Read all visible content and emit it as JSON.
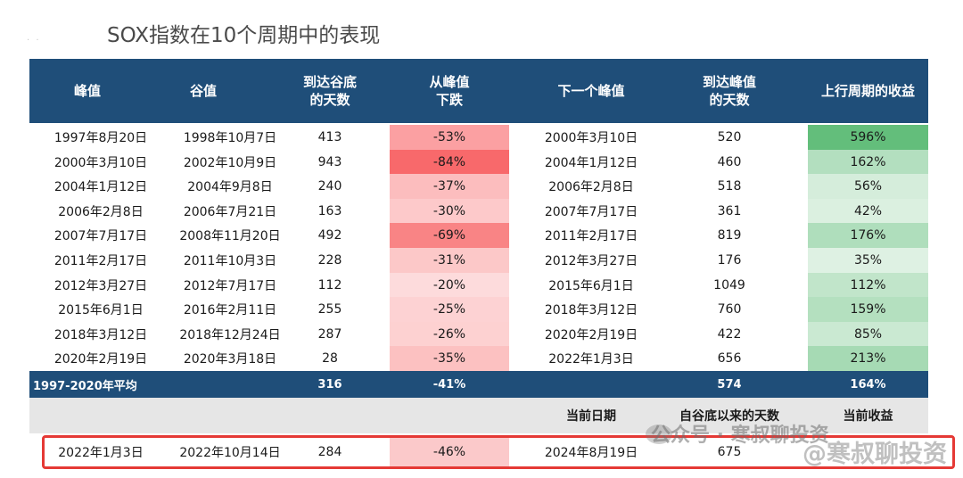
{
  "title": "SOX指数在10个周期中的表现",
  "header": [
    "峰值",
    "谷值",
    "到达谷底\n的天数",
    "从峰值\n下跌",
    "下一个峰值",
    "到达峰值\n的天数",
    "上行周期的收益"
  ],
  "rows": [
    {
      "peak": "1997年8月20日",
      "trough": "1998年10月7日",
      "days_to_trough": "413",
      "drop": "-53%",
      "next_peak": "2000年3月10日",
      "days_to_peak": "520",
      "gain": "596%"
    },
    {
      "peak": "2000年3月10日",
      "trough": "2002年10月9日",
      "days_to_trough": "943",
      "drop": "-84%",
      "next_peak": "2004年1月12日",
      "days_to_peak": "460",
      "gain": "162%"
    },
    {
      "peak": "2004年1月12日",
      "trough": "2004年9月8日",
      "days_to_trough": "240",
      "drop": "-37%",
      "next_peak": "2006年2月8日",
      "days_to_peak": "518",
      "gain": "56%"
    },
    {
      "peak": "2006年2月8日",
      "trough": "2006年7月21日",
      "days_to_trough": "163",
      "drop": "-30%",
      "next_peak": "2007年7月17日",
      "days_to_peak": "361",
      "gain": "42%"
    },
    {
      "peak": "2007年7月17日",
      "trough": "2008年11月20日",
      "days_to_trough": "492",
      "drop": "-69%",
      "next_peak": "2011年2月17日",
      "days_to_peak": "819",
      "gain": "176%"
    },
    {
      "peak": "2011年2月17日",
      "trough": "2011年10月3日",
      "days_to_trough": "228",
      "drop": "-31%",
      "next_peak": "2012年3月27日",
      "days_to_peak": "176",
      "gain": "35%"
    },
    {
      "peak": "2012年3月27日",
      "trough": "2012年7月17日",
      "days_to_trough": "112",
      "drop": "-20%",
      "next_peak": "2015年6月1日",
      "days_to_peak": "1049",
      "gain": "112%"
    },
    {
      "peak": "2015年6月1日",
      "trough": "2016年2月11日",
      "days_to_trough": "255",
      "drop": "-25%",
      "next_peak": "2018年3月12日",
      "days_to_peak": "760",
      "gain": "159%"
    },
    {
      "peak": "2018年3月12日",
      "trough": "2018年12月24日",
      "days_to_trough": "287",
      "drop": "-26%",
      "next_peak": "2020年2月19日",
      "days_to_peak": "422",
      "gain": "85%"
    },
    {
      "peak": "2020年2月19日",
      "trough": "2020年3月18日",
      "days_to_trough": "28",
      "drop": "-35%",
      "next_peak": "2022年1月3日",
      "days_to_peak": "656",
      "gain": "213%"
    }
  ],
  "average": {
    "label": "1997-2020年平均",
    "days_to_trough": "316",
    "drop": "-41%",
    "days_to_peak": "574",
    "gain": "164%"
  },
  "current_header": {
    "date": "当前日期",
    "days_since_trough": "自谷底以来的天数",
    "current_gain": "当前收益"
  },
  "current": {
    "peak": "2022年1月3日",
    "trough": "2022年10月14日",
    "days_to_trough": "284",
    "drop": "-46%",
    "date": "2024年8月19日",
    "days_since_trough": "675"
  },
  "watermark": {
    "text1": "公众号 · 寒叔聊投资",
    "text2": "@寒叔聊投资"
  },
  "colors": {
    "header_bg": "#1f4e79",
    "drop_scale": "#f8696b",
    "gain_scale": "#63be7b",
    "highlight_box": "#e53935"
  }
}
